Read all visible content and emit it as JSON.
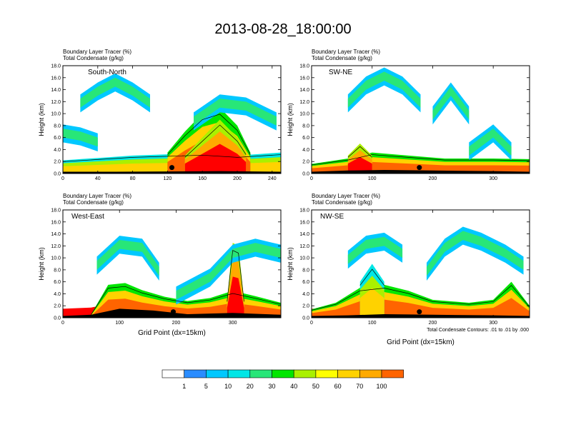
{
  "figure_title": "2013-08-28_18:00:00",
  "colors": {
    "levels": [
      "#ffffff",
      "#2a8cff",
      "#00c8ff",
      "#00e6e6",
      "#28e678",
      "#00e600",
      "#aaf000",
      "#ffff00",
      "#ffd200",
      "#ffaa00",
      "#ff6400",
      "#ff0000"
    ]
  },
  "colorbar": {
    "labels": [
      "1",
      "5",
      "10",
      "20",
      "30",
      "40",
      "50",
      "60",
      "70",
      "100"
    ]
  },
  "footnote": "Total Condensate Contours: .01 to .01 by .000",
  "chart_data": [
    {
      "type": "heatmap",
      "panel_label": "South-North",
      "title_line1": "Boundary Layer Tracer    (%)",
      "title_line2": "Total Condensate    (g/kg)",
      "ylabel": "Height (km)",
      "xlabel": "",
      "xlim": [
        0,
        250
      ],
      "ylim": [
        0,
        18
      ],
      "xticks": [
        0,
        40,
        80,
        120,
        160,
        200,
        240
      ],
      "yticks": [
        "0.0",
        "2.0",
        "4.0",
        "6.0",
        "8.0",
        "10.0",
        "12.0",
        "14.0",
        "16.0",
        "18.0"
      ],
      "terrain": [
        [
          0,
          0.3
        ],
        [
          60,
          0.3
        ],
        [
          120,
          0.35
        ],
        [
          180,
          0.4
        ],
        [
          250,
          0.3
        ]
      ],
      "marker": [
        125,
        1.0
      ],
      "blobs": [
        [
          {
            "x": [
              0,
              40,
              80,
              120,
              160,
              200,
              250
            ],
            "y": [
              2.2,
              2.6,
              3.0,
              3.2,
              3.4,
              3.0,
              3.5
            ],
            "l": 8
          },
          {
            "x": [
              120,
              140,
              160,
              180,
              200,
              215
            ],
            "y": [
              3.5,
              7,
              10,
              11,
              8,
              3.5
            ],
            "l": 10
          },
          {
            "x": [
              140,
              160,
              180,
              200,
              210
            ],
            "y": [
              3,
              6,
              9,
              6,
              3.5
            ],
            "l": 11
          }
        ],
        [
          {
            "x": [
              20,
              40,
              60,
              80,
              100
            ],
            "y": [
              12,
              14,
              15.5,
              14,
              12
            ],
            "l": 4
          },
          {
            "x": [
              150,
              180,
              210,
              245
            ],
            "y": [
              9,
              12,
              11.5,
              9
            ],
            "l": 4
          },
          {
            "x": [
              0,
              20,
              40
            ],
            "y": [
              7,
              6.5,
              5.5
            ],
            "l": 2
          }
        ]
      ]
    },
    {
      "type": "heatmap",
      "panel_label": "SW-NE",
      "title_line1": "Boundary Layer Tracer    (%)",
      "title_line2": "Total Condensate    (g/kg)",
      "ylabel": "Height (km)",
      "xlabel": "",
      "xlim": [
        0,
        360
      ],
      "ylim": [
        0,
        18
      ],
      "xticks": [
        0,
        100,
        200,
        300
      ],
      "yticks": [
        "0.0",
        "2.0",
        "4.0",
        "6.0",
        "8.0",
        "10.0",
        "12.0",
        "14.0",
        "16.0",
        "18.0"
      ],
      "terrain": [
        [
          0,
          0.3
        ],
        [
          60,
          0.5
        ],
        [
          120,
          0.6
        ],
        [
          200,
          0.5
        ],
        [
          300,
          0.4
        ],
        [
          360,
          0.3
        ]
      ],
      "marker": [
        178,
        1.0
      ],
      "blobs": [
        [
          {
            "x": [
              0,
              60,
              100,
              160,
              220,
              300,
              360
            ],
            "y": [
              1.6,
              2.5,
              3.5,
              3,
              2.5,
              2.5,
              2.4
            ],
            "l": 10
          },
          {
            "x": [
              60,
              80,
              100
            ],
            "y": [
              3,
              5,
              3
            ],
            "l": 11
          }
        ],
        [
          {
            "x": [
              60,
              90,
              120,
              150,
              180
            ],
            "y": [
              12,
              15,
              16.5,
              15,
              12
            ],
            "l": 4
          },
          {
            "x": [
              200,
              230,
              260
            ],
            "y": [
              10,
              14,
              10
            ],
            "l": 4
          },
          {
            "x": [
              260,
              300,
              330
            ],
            "y": [
              4,
              7,
              4
            ],
            "l": 4
          }
        ]
      ]
    },
    {
      "type": "heatmap",
      "panel_label": "West-East",
      "title_line1": "Boundary Layer Tracer    (%)",
      "title_line2": "Total Condensate    (g/kg)",
      "ylabel": "Height (km)",
      "xlabel": "Grid Point (dx=15km)",
      "xlim": [
        0,
        385
      ],
      "ylim": [
        0,
        18
      ],
      "xticks": [
        0,
        100,
        200,
        300
      ],
      "yticks": [
        "0.0",
        "2.0",
        "4.0",
        "6.0",
        "8.0",
        "10.0",
        "12.0",
        "14.0",
        "16.0",
        "18.0"
      ],
      "terrain": [
        [
          0,
          0.3
        ],
        [
          50,
          0.5
        ],
        [
          100,
          1.5
        ],
        [
          160,
          1.2
        ],
        [
          220,
          0.6
        ],
        [
          300,
          0.8
        ],
        [
          385,
          0.5
        ]
      ],
      "marker": [
        195,
        1.0
      ],
      "blobs": [
        [
          {
            "x": [
              50,
              80,
              110,
              140,
              180,
              220,
              260,
              300,
              340,
              385
            ],
            "y": [
              0.6,
              5.5,
              5.8,
              4.6,
              3.5,
              2.8,
              3.3,
              4.5,
              3.6,
              2.5
            ],
            "l": 10
          },
          {
            "x": [
              290,
              300,
              310,
              320
            ],
            "y": [
              3,
              12.5,
              12,
              3
            ],
            "l": 11
          }
        ],
        [
          {
            "x": [
              60,
              100,
              140,
              170
            ],
            "y": [
              9,
              12.5,
              12,
              8
            ],
            "l": 4
          },
          {
            "x": [
              200,
              260,
              300,
              340,
              385
            ],
            "y": [
              4,
              7,
              11,
              12,
              11
            ],
            "l": 4
          }
        ]
      ]
    },
    {
      "type": "heatmap",
      "panel_label": "NW-SE",
      "title_line1": "Boundary Layer Tracer    (%)",
      "title_line2": "Total Condensate    (g/kg)",
      "ylabel": "Height (km)",
      "xlabel": "Grid Point (dx=15km)",
      "xlim": [
        0,
        360
      ],
      "ylim": [
        0,
        18
      ],
      "xticks": [
        0,
        100,
        200,
        300
      ],
      "yticks": [
        "0.0",
        "2.0",
        "4.0",
        "6.0",
        "8.0",
        "10.0",
        "12.0",
        "14.0",
        "16.0",
        "18.0"
      ],
      "terrain": [
        [
          0,
          0.3
        ],
        [
          60,
          0.4
        ],
        [
          120,
          0.6
        ],
        [
          200,
          0.5
        ],
        [
          300,
          0.4
        ],
        [
          360,
          0.3
        ]
      ],
      "marker": [
        178,
        1.0
      ],
      "blobs": [
        [
          {
            "x": [
              0,
              40,
              80,
              120,
              160,
              200,
              260,
              300,
              330,
              360
            ],
            "y": [
              1.4,
              2.5,
              5.0,
              5.5,
              4.5,
              3.0,
              2.5,
              3.0,
              6.0,
              2.0
            ],
            "l": 10
          },
          {
            "x": [
              80,
              100,
              120
            ],
            "y": [
              6,
              9,
              6
            ],
            "l": 8
          }
        ],
        [
          {
            "x": [
              60,
              90,
              120,
              150
            ],
            "y": [
              10,
              12.5,
              13,
              11
            ],
            "l": 4
          },
          {
            "x": [
              190,
              220,
              250,
              280,
              320,
              350
            ],
            "y": [
              8,
              12,
              14,
              13,
              11,
              9
            ],
            "l": 4
          }
        ]
      ]
    }
  ]
}
